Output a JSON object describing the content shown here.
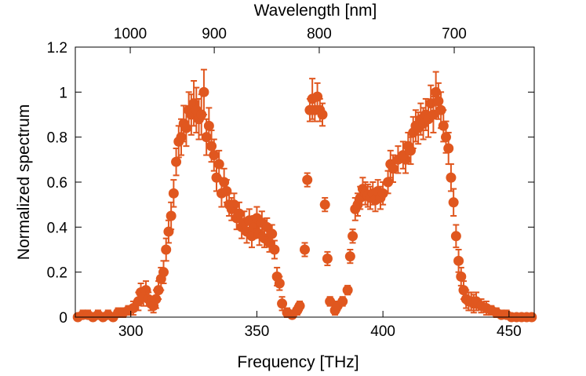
{
  "chart_data": {
    "type": "scatter",
    "title": "",
    "xlabel": "Frequency [THz]",
    "ylabel": "Normalized spectrum",
    "x2label": "Wavelength [nm]",
    "xlim": [
      278,
      460
    ],
    "ylim": [
      0,
      1.2
    ],
    "x_ticks": [
      300,
      350,
      400,
      450
    ],
    "y_ticks": [
      0,
      0.2,
      0.4,
      0.6,
      0.8,
      1,
      1.2
    ],
    "y_tick_labels": [
      "0",
      "0.2",
      "0.4",
      "0.6",
      "0.8",
      "1",
      "1.2"
    ],
    "x2_ticks": [
      1000,
      900,
      800,
      700
    ],
    "x2_unit_note": "",
    "error_bars": true,
    "grid": false,
    "legend": "none",
    "marker_color": "#e0571f",
    "series": [
      {
        "x": [
          279,
          281,
          283,
          285,
          287,
          289,
          291,
          293,
          295,
          297,
          299,
          301,
          303,
          304,
          305,
          306,
          307,
          308,
          309,
          310,
          311,
          312,
          313,
          314,
          315,
          316,
          317,
          318,
          319,
          320,
          321,
          322,
          323,
          324,
          325,
          326,
          327,
          328,
          329,
          330,
          331,
          332,
          333,
          334,
          335,
          336,
          337,
          338,
          339,
          340,
          341,
          342,
          343,
          344,
          345,
          346,
          347,
          348,
          349,
          350,
          351,
          352,
          353,
          354,
          355,
          356,
          357,
          358,
          359,
          360,
          362,
          364,
          366,
          367,
          369,
          370,
          371,
          372,
          373,
          374,
          375,
          376,
          377,
          378,
          379,
          381,
          382,
          384,
          386,
          387,
          388,
          389,
          390,
          391,
          392,
          393,
          394,
          395,
          396,
          397,
          398,
          399,
          400,
          402,
          403,
          404,
          406,
          408,
          409,
          410,
          411,
          412,
          413,
          414,
          415,
          416,
          417,
          418,
          419,
          420,
          421,
          422,
          423,
          424,
          425,
          426,
          427,
          428,
          429,
          430,
          431,
          432,
          433,
          434,
          435,
          436,
          437,
          439,
          441,
          443,
          445,
          447,
          449,
          451,
          453,
          455,
          457,
          459
        ],
        "y": [
          0.0,
          0.01,
          0.01,
          0.0,
          0.01,
          0.0,
          0.01,
          0.0,
          0.02,
          0.02,
          0.03,
          0.04,
          0.07,
          0.11,
          0.09,
          0.12,
          0.08,
          0.06,
          0.05,
          0.08,
          0.12,
          0.17,
          0.2,
          0.3,
          0.38,
          0.45,
          0.55,
          0.69,
          0.78,
          0.8,
          0.86,
          0.84,
          0.92,
          0.9,
          0.95,
          0.92,
          0.88,
          0.9,
          1.0,
          0.8,
          0.85,
          0.76,
          0.72,
          0.62,
          0.68,
          0.55,
          0.6,
          0.56,
          0.5,
          0.48,
          0.5,
          0.44,
          0.46,
          0.4,
          0.42,
          0.38,
          0.43,
          0.36,
          0.4,
          0.44,
          0.37,
          0.42,
          0.35,
          0.4,
          0.33,
          0.37,
          0.3,
          0.18,
          0.15,
          0.06,
          0.02,
          0.01,
          0.03,
          0.05,
          0.3,
          0.61,
          0.92,
          0.97,
          0.92,
          0.98,
          0.92,
          0.9,
          0.5,
          0.26,
          0.07,
          0.03,
          0.05,
          0.07,
          0.12,
          0.27,
          0.36,
          0.48,
          0.5,
          0.53,
          0.57,
          0.55,
          0.54,
          0.53,
          0.55,
          0.52,
          0.56,
          0.53,
          0.55,
          0.6,
          0.68,
          0.66,
          0.7,
          0.72,
          0.7,
          0.76,
          0.74,
          0.82,
          0.85,
          0.84,
          0.88,
          0.86,
          0.9,
          0.88,
          0.95,
          0.9,
          1.0,
          0.96,
          0.92,
          0.85,
          0.8,
          0.75,
          0.62,
          0.51,
          0.36,
          0.25,
          0.18,
          0.12,
          0.08,
          0.07,
          0.07,
          0.06,
          0.07,
          0.05,
          0.04,
          0.03,
          0.02,
          0.01,
          0.01,
          0.0,
          0.0,
          0.0,
          0.0,
          0.0
        ],
        "err": [
          0.01,
          0.02,
          0.02,
          0.01,
          0.02,
          0.01,
          0.02,
          0.01,
          0.02,
          0.02,
          0.02,
          0.03,
          0.04,
          0.04,
          0.04,
          0.04,
          0.03,
          0.03,
          0.03,
          0.04,
          0.04,
          0.05,
          0.05,
          0.05,
          0.05,
          0.06,
          0.06,
          0.06,
          0.07,
          0.08,
          0.08,
          0.08,
          0.08,
          0.09,
          0.1,
          0.1,
          0.09,
          0.09,
          0.1,
          0.08,
          0.08,
          0.07,
          0.07,
          0.06,
          0.06,
          0.06,
          0.06,
          0.05,
          0.05,
          0.05,
          0.05,
          0.05,
          0.05,
          0.05,
          0.05,
          0.05,
          0.05,
          0.05,
          0.05,
          0.05,
          0.05,
          0.05,
          0.04,
          0.04,
          0.04,
          0.04,
          0.04,
          0.04,
          0.03,
          0.03,
          0.02,
          0.02,
          0.02,
          0.02,
          0.03,
          0.03,
          0.05,
          0.09,
          0.05,
          0.06,
          0.05,
          0.05,
          0.03,
          0.03,
          0.02,
          0.02,
          0.02,
          0.02,
          0.02,
          0.03,
          0.03,
          0.05,
          0.05,
          0.05,
          0.05,
          0.05,
          0.05,
          0.05,
          0.05,
          0.05,
          0.05,
          0.05,
          0.05,
          0.05,
          0.06,
          0.06,
          0.06,
          0.06,
          0.06,
          0.06,
          0.06,
          0.07,
          0.07,
          0.07,
          0.07,
          0.07,
          0.07,
          0.08,
          0.08,
          0.08,
          0.09,
          0.08,
          0.08,
          0.07,
          0.07,
          0.07,
          0.06,
          0.06,
          0.05,
          0.05,
          0.04,
          0.04,
          0.04,
          0.04,
          0.04,
          0.04,
          0.04,
          0.03,
          0.03,
          0.02,
          0.02,
          0.02,
          0.02,
          0.01,
          0.01,
          0.01,
          0.01,
          0.01
        ]
      }
    ]
  }
}
